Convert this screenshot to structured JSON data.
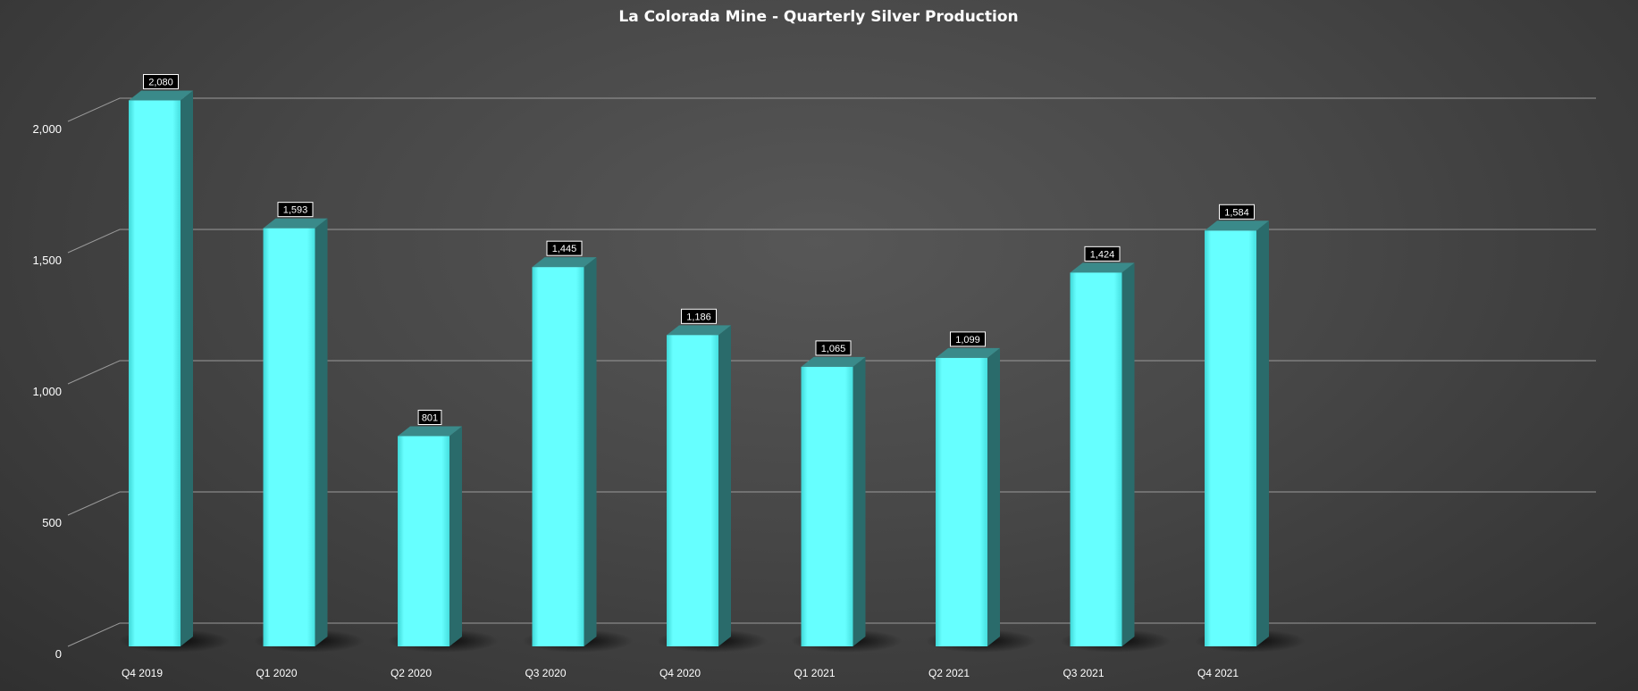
{
  "chart_data": {
    "type": "bar",
    "title": "La Colorada Mine - Quarterly Silver Production",
    "categories": [
      "Q4 2019",
      "Q1 2020",
      "Q2 2020",
      "Q3 2020",
      "Q4 2020",
      "Q1 2021",
      "Q2 2021",
      "Q3 2021",
      "Q4 2021"
    ],
    "values": [
      2080,
      1593,
      801,
      1445,
      1186,
      1065,
      1099,
      1424,
      1584
    ],
    "data_labels": [
      "2,080",
      "1,593",
      "801",
      "1,445",
      "1,186",
      "1,065",
      "1,099",
      "1,424",
      "1,584"
    ],
    "yticks": [
      0,
      500,
      1000,
      1500,
      2000
    ],
    "ytick_labels": [
      "0",
      "500",
      "1,000",
      "1,500",
      "2,000"
    ],
    "ylim": [
      0,
      2000
    ],
    "xlabel": "",
    "ylabel": "",
    "grid": true,
    "style": "3d-column",
    "colors": {
      "bar_front": "#66ffff",
      "bar_side": "#2a6b6b",
      "bar_top": "#3a8a8a",
      "text": "#ffffff",
      "grid": "#9a9a9a",
      "label_box": "#000000"
    }
  }
}
